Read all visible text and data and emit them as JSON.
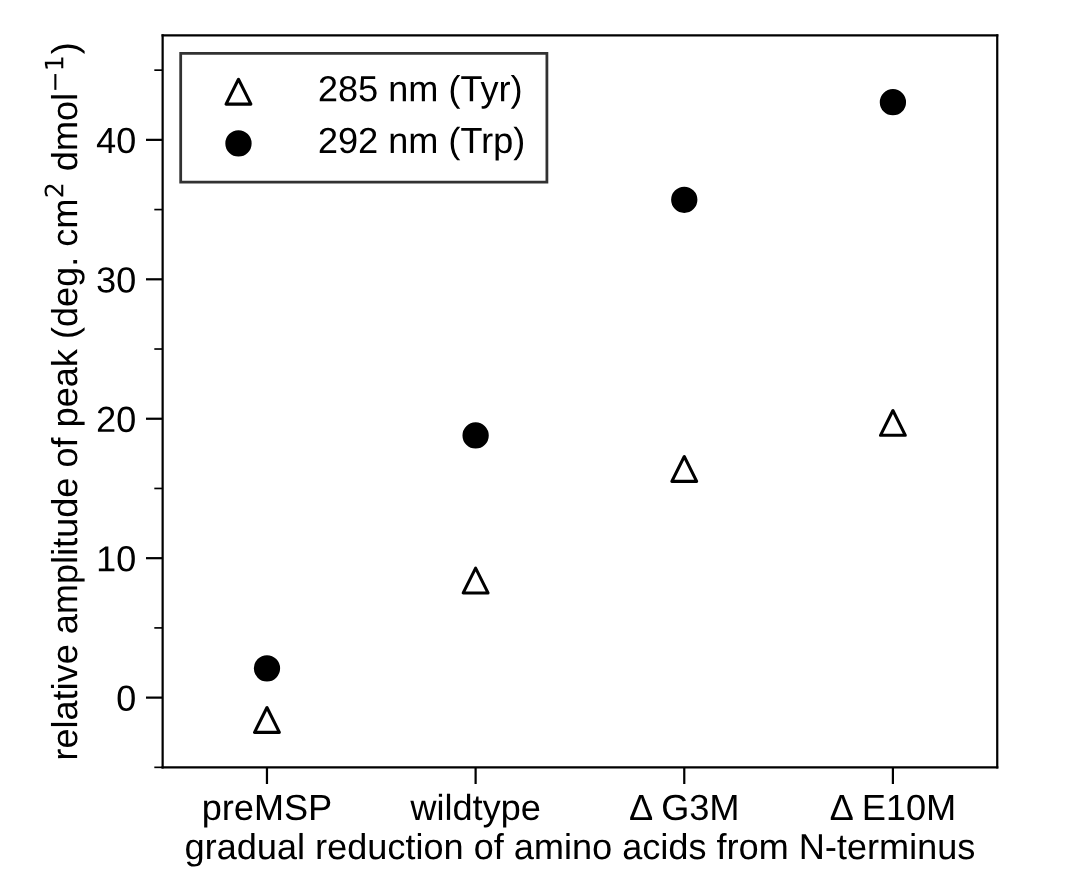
{
  "chart_data": {
    "type": "scatter",
    "xlabel": "gradual reduction of amino acids from N-terminus",
    "ylabel": "relative amplitude of peak (deg. cm$^{2}$ dmol$^{−1}$)",
    "categories": [
      "preMSP",
      "wildtype",
      "Δ G3M",
      "Δ E10M"
    ],
    "series": [
      {
        "name": "285 nm (Tyr)",
        "color": "#000000",
        "marker": "triangle",
        "values": [
          -1.6,
          8.4,
          16.4,
          19.7
        ]
      },
      {
        "name": "292 nm (Trp)",
        "color": "#000000",
        "marker": "circle",
        "values": [
          2.1,
          18.8,
          35.7,
          42.7
        ]
      }
    ],
    "ylim": [
      -5,
      47.5
    ],
    "yticks": [
      {
        "value": -5,
        "label": null
      },
      0,
      {
        "value": 5,
        "label": null
      },
      10,
      {
        "value": 15,
        "label": null
      },
      20,
      {
        "value": 25,
        "label": null
      },
      30,
      {
        "value": 35,
        "label": null
      },
      40,
      {
        "value": 45,
        "label": null
      }
    ],
    "legend": "top left",
    "grid": false
  }
}
